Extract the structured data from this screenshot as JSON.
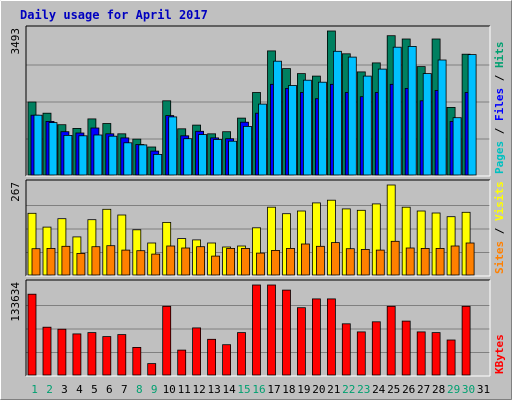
{
  "chart_data": {
    "type": "bar",
    "title": "Daily usage for April 2017",
    "x": [
      "1",
      "2",
      "3",
      "4",
      "5",
      "6",
      "7",
      "8",
      "9",
      "10",
      "11",
      "12",
      "13",
      "14",
      "15",
      "16",
      "17",
      "18",
      "19",
      "20",
      "21",
      "22",
      "23",
      "24",
      "25",
      "26",
      "27",
      "28",
      "29",
      "30",
      "31"
    ],
    "weekend_days": [
      "1",
      "2",
      "8",
      "9",
      "15",
      "16",
      "22",
      "23",
      "29",
      "30"
    ],
    "panels": [
      {
        "id": "hits",
        "ymax_label": "3493",
        "ymax": 3493,
        "side_label": [
          "Pages",
          " / ",
          "Files",
          " / ",
          "Hits"
        ],
        "side_colors": [
          "#00c0c0",
          "#000000",
          "#0000ff",
          "#000000",
          "#00a070"
        ],
        "series": [
          {
            "name": "Hits",
            "color": "#008060",
            "values": [
              1770,
              1500,
              1220,
              1130,
              1360,
              1250,
              1000,
              870,
              680,
              1800,
              1120,
              1210,
              1000,
              1050,
              1380,
              2000,
              3010,
              2580,
              2460,
              2400,
              3493,
              2940,
              2500,
              2720,
              3380,
              3300,
              2630,
              3300,
              1640,
              2930,
              0
            ]
          },
          {
            "name": "Files",
            "color": "#0000ff",
            "values": [
              1450,
              1300,
              1050,
              1020,
              1140,
              1000,
              900,
              740,
              580,
              1440,
              950,
              1060,
              900,
              880,
              1280,
              1500,
              2200,
              2100,
              2000,
              1850,
              2200,
              2000,
              1900,
              2000,
              2200,
              2100,
              1800,
              2050,
              1300,
              2000,
              0
            ]
          },
          {
            "name": "Pages",
            "color": "#00c0ff",
            "values": [
              1450,
              1270,
              960,
              950,
              970,
              940,
              780,
              730,
              500,
              1410,
              880,
              980,
              860,
              820,
              1180,
              1720,
              2760,
              2170,
              2300,
              2250,
              3000,
              2860,
              2400,
              2570,
              3100,
              3120,
              2460,
              2790,
              1390,
              2920,
              0
            ]
          }
        ]
      },
      {
        "id": "visits",
        "ymax_label": "267",
        "ymax": 267,
        "side_label": [
          "Sites",
          " / ",
          "Visits"
        ],
        "side_colors": [
          "#ff8000",
          "#000000",
          "#ffff00"
        ],
        "series": [
          {
            "name": "Visits",
            "color": "#ffff00",
            "values": [
              183,
              142,
              167,
              113,
              164,
              195,
              178,
              134,
              95,
              156,
              108,
              104,
              95,
              83,
              86,
              140,
              201,
              182,
              190,
              214,
              222,
              196,
              192,
              211,
              267,
              201,
              190,
              184,
              173,
              186,
              0
            ]
          },
          {
            "name": "Sites",
            "color": "#ff8000",
            "values": [
              78,
              79,
              85,
              64,
              84,
              87,
              74,
              72,
              62,
              86,
              80,
              84,
              56,
              79,
              79,
              65,
              73,
              79,
              92,
              85,
              96,
              78,
              76,
              74,
              100,
              80,
              79,
              79,
              86,
              95,
              0
            ]
          }
        ]
      },
      {
        "id": "kbytes",
        "ymax_label": "133634",
        "ymax": 133634,
        "side_label": [
          "KBytes"
        ],
        "side_colors": [
          "#ff0000"
        ],
        "series": [
          {
            "name": "KBytes",
            "color": "#ff0000",
            "values": [
              120000,
              71000,
              68000,
              61000,
              63000,
              57000,
              60000,
              41000,
              17000,
              102000,
              37000,
              70000,
              53000,
              45000,
              63000,
              133634,
              133634,
              126000,
              100000,
              113000,
              113000,
              76000,
              64000,
              79000,
              102000,
              80000,
              64000,
              63000,
              52000,
              102000,
              0
            ]
          }
        ]
      }
    ]
  }
}
